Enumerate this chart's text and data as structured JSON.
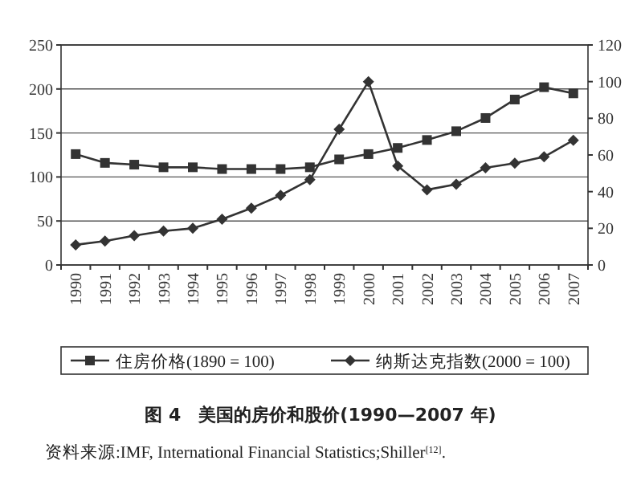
{
  "chart_data": {
    "type": "line",
    "title": "图 4　美国的房价和股价(1990—2007 年)",
    "categories": [
      "1990",
      "1991",
      "1992",
      "1993",
      "1994",
      "1995",
      "1996",
      "1997",
      "1998",
      "1999",
      "2000",
      "2001",
      "2002",
      "2003",
      "2004",
      "2005",
      "2006",
      "2007"
    ],
    "series": [
      {
        "name": "住房价格(1890 = 100)",
        "color": "#333333",
        "marker": "square",
        "values": [
          126,
          116,
          114,
          111,
          111,
          109,
          109,
          109,
          111,
          120,
          126,
          133,
          142,
          152,
          167,
          188,
          202,
          195
        ]
      },
      {
        "name": "纳斯达克指数(2000 = 100)",
        "color": "#333333",
        "marker": "diamond",
        "axis": "y2",
        "values": [
          11,
          13,
          16,
          18.5,
          20,
          25,
          31,
          38,
          46.5,
          74,
          100,
          54,
          41,
          44,
          53,
          55.5,
          59,
          68
        ]
      }
    ],
    "ylim": [
      0,
      250
    ],
    "yticks": [
      0,
      50,
      100,
      150,
      200,
      250
    ],
    "y2lim": [
      0,
      120
    ],
    "y2ticks": [
      0,
      20,
      40,
      60,
      80,
      100,
      120
    ],
    "grid": "y",
    "legend": "bottom",
    "line_style": "solid",
    "annotations": [
      "资料来源:IMF, International Financial Statistics;Shiller$^{[12]}$."
    ]
  }
}
